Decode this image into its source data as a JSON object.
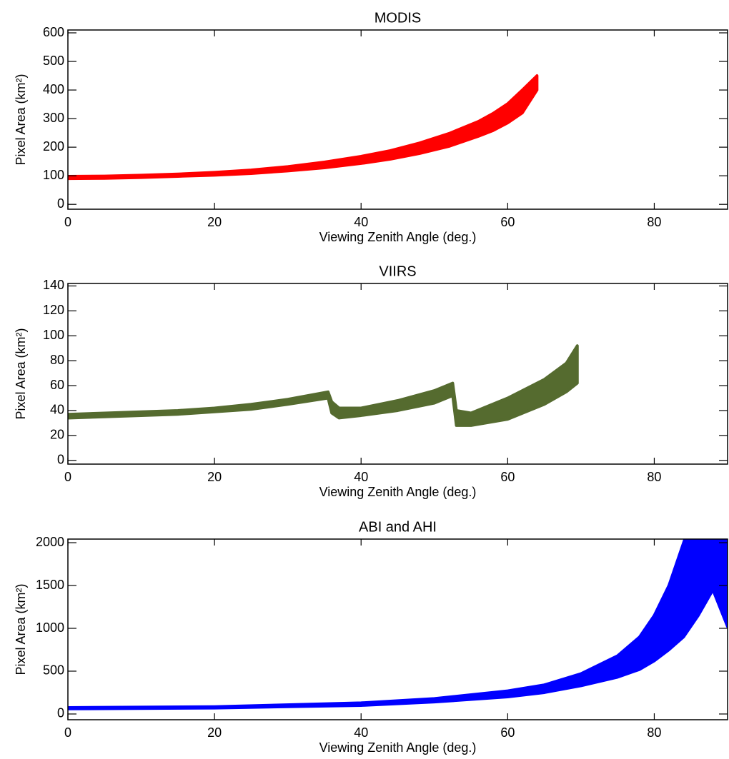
{
  "chart_data": [
    {
      "type": "range",
      "title": "MODIS",
      "xlabel": "Viewing Zenith Angle (deg.)",
      "ylabel": "Pixel Area (km²)",
      "color": "#ff0000",
      "x": [
        0,
        5,
        10,
        15,
        20,
        25,
        30,
        35,
        40,
        44,
        48,
        52,
        56,
        58,
        60,
        62,
        64
      ],
      "low": [
        90,
        91,
        94,
        98,
        102,
        108,
        117,
        128,
        143,
        158,
        178,
        203,
        238,
        258,
        285,
        320,
        400
      ],
      "high": [
        98,
        99,
        102,
        106,
        112,
        120,
        132,
        148,
        168,
        188,
        215,
        248,
        290,
        318,
        352,
        400,
        450
      ],
      "xlim": [
        0,
        90
      ],
      "xticks": [
        0,
        20,
        40,
        60,
        80
      ],
      "ylim": [
        -17,
        610
      ],
      "yticks": [
        0,
        100,
        200,
        300,
        400,
        500,
        600
      ]
    },
    {
      "type": "range",
      "title": "VIIRS",
      "xlabel": "Viewing Zenith Angle (deg.)",
      "ylabel": "Pixel Area (km²)",
      "color": "#556b2f",
      "x": [
        0,
        5,
        10,
        15,
        20,
        25,
        30,
        35.5,
        36,
        37,
        40,
        45,
        50,
        52.5,
        53,
        55,
        60,
        65,
        68,
        69.5
      ],
      "low": [
        34,
        35,
        36,
        37,
        39,
        41,
        45,
        50,
        38,
        34,
        36,
        40,
        46,
        52,
        28,
        28,
        33,
        45,
        55,
        62
      ],
      "high": [
        37,
        38,
        39,
        40,
        42,
        45,
        49,
        55,
        47,
        42,
        42,
        48,
        56,
        62,
        40,
        38,
        50,
        65,
        78,
        92
      ],
      "xlim": [
        0,
        90
      ],
      "xticks": [
        0,
        20,
        40,
        60,
        80
      ],
      "ylim": [
        -3,
        142
      ],
      "yticks": [
        0,
        20,
        40,
        60,
        80,
        100,
        120,
        140
      ]
    },
    {
      "type": "range",
      "title": "ABI and AHI",
      "xlabel": "Viewing Zenith Angle (deg.)",
      "ylabel": "Pixel Area (km²)",
      "color": "#0000ff",
      "x": [
        0,
        20,
        40,
        50,
        60,
        65,
        70,
        75,
        78,
        80,
        82,
        84,
        86,
        88,
        90
      ],
      "low": [
        60,
        70,
        100,
        140,
        200,
        250,
        330,
        430,
        520,
        620,
        750,
        900,
        1150,
        1450,
        1020
      ],
      "high": [
        75,
        85,
        130,
        180,
        270,
        340,
        470,
        680,
        900,
        1150,
        1500,
        2000,
        2500,
        2500,
        2500
      ],
      "xlim": [
        0,
        90
      ],
      "xticks": [
        0,
        20,
        40,
        60,
        80
      ],
      "ylim": [
        -67,
        2042
      ],
      "yticks": [
        0,
        500,
        1000,
        1500,
        2000
      ]
    }
  ]
}
